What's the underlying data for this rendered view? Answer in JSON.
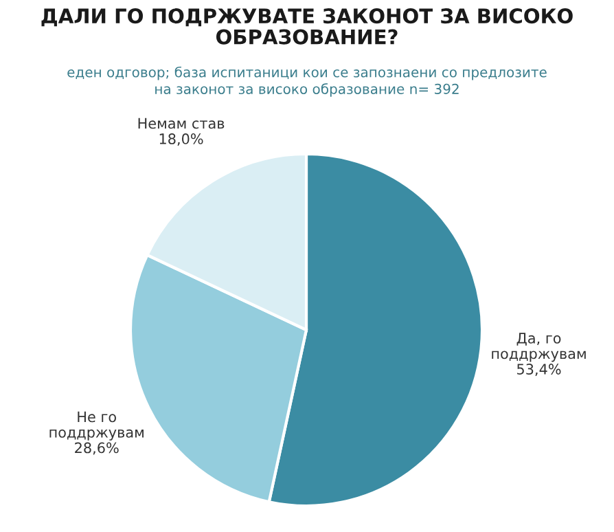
{
  "chart_data": {
    "type": "pie",
    "title": "ДАЛИ ГО ПОДРЖУВАТЕ ЗАКОНОТ ЗА ВИСОКО\nОБРАЗОВАНИЕ?",
    "subtitle": "еден одговор; база испитаници кои се запознаени со предлозите\nна законот за високо образование n= 392",
    "categories": [
      "Да, го\nподдржувам",
      "Не го\nподдржувам",
      "Немам став"
    ],
    "values": [
      53.4,
      28.6,
      18.0
    ],
    "value_labels": [
      "53,4%",
      "28,6%",
      "18,0%"
    ],
    "colors": [
      "#3b8ca3",
      "#94cddd",
      "#daeef4"
    ]
  }
}
